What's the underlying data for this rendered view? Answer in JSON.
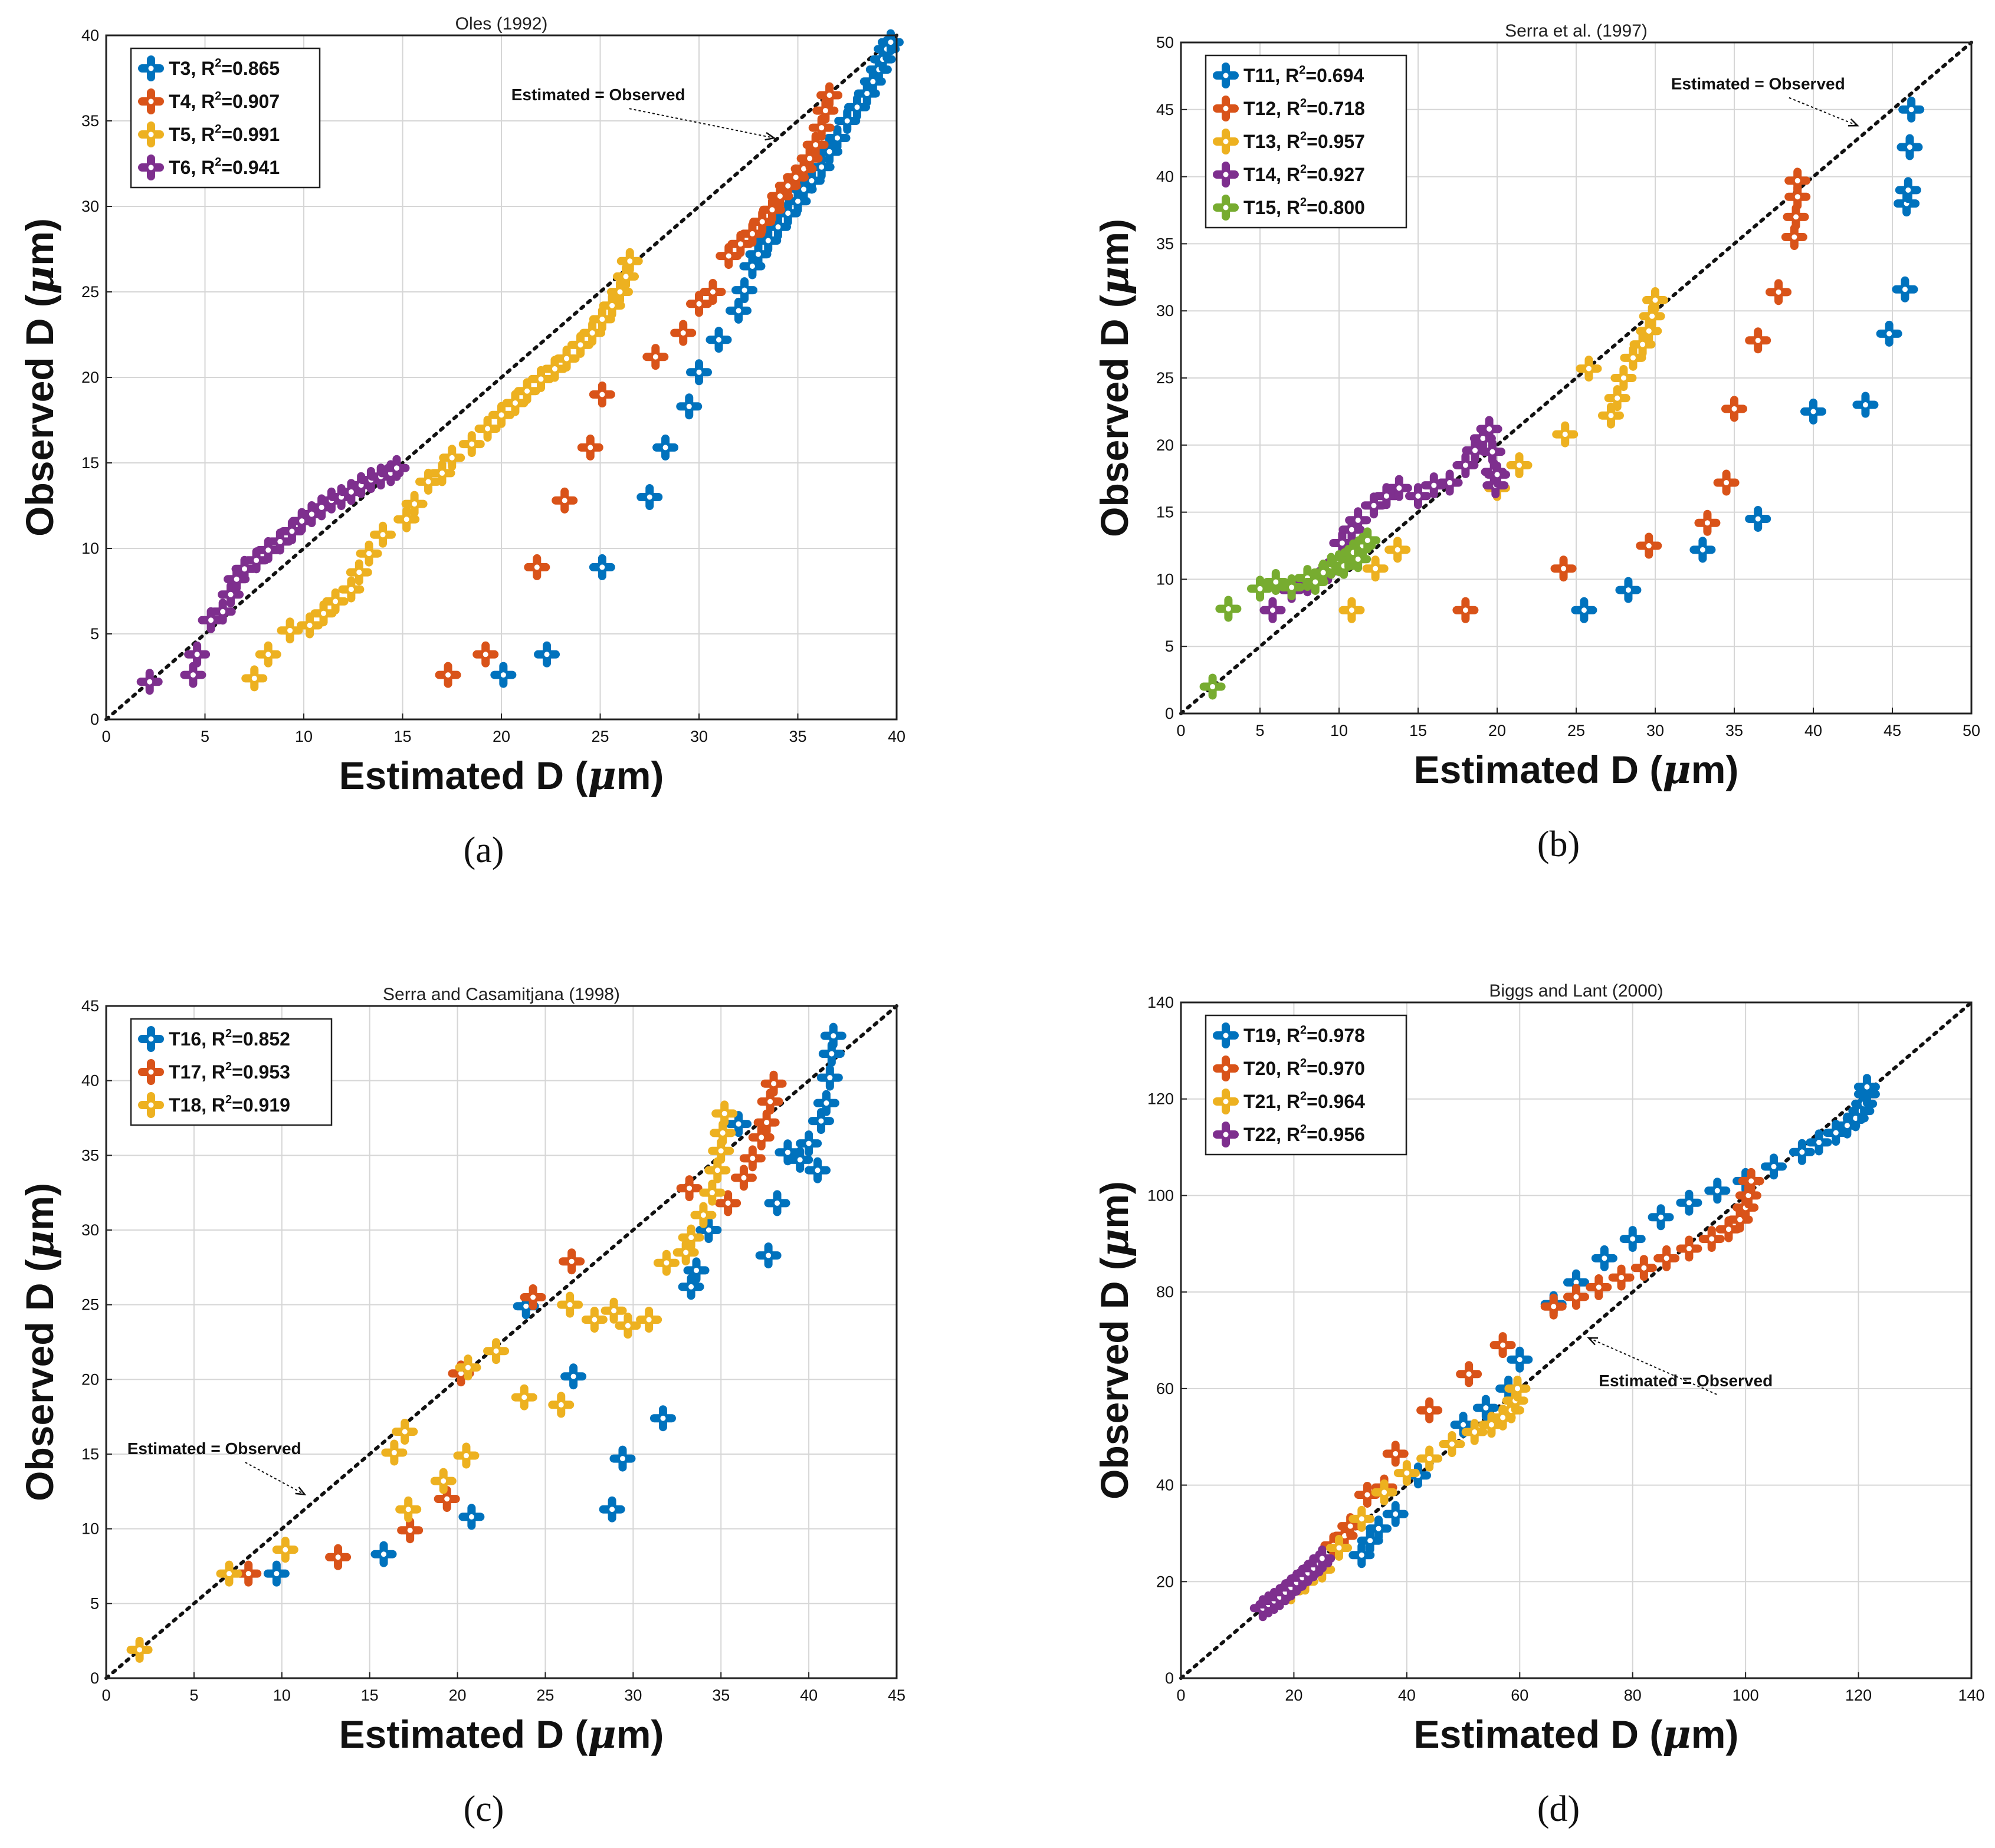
{
  "chart_data": [
    {
      "type": "scatter",
      "panel": "a",
      "caption": "(a)",
      "title": "Oles (1992)",
      "xlabel": "Estimated D (",
      "ylabel": "Observed D (",
      "unit_symbol": "μ",
      "unit_rest": "m)",
      "xlim": [
        0,
        40
      ],
      "ylim": [
        0,
        40
      ],
      "xticks": [
        0,
        5,
        10,
        15,
        20,
        25,
        30,
        35,
        40
      ],
      "yticks": [
        0,
        5,
        10,
        15,
        20,
        25,
        30,
        35,
        40
      ],
      "grid": true,
      "legend_position": "top-left",
      "annotation": {
        "text": "Estimated = Observed",
        "at": [
          20.5,
          36.2
        ],
        "point": [
          33.8,
          34.0
        ]
      },
      "series": [
        {
          "name": "T3",
          "r2": "0.865",
          "color": "#0072BD",
          "x": [
            20.1,
            22.3,
            25.1,
            27.5,
            28.3,
            29.5,
            30.0,
            31.0,
            32.0,
            32.3,
            32.7,
            33.0,
            33.5,
            34.0,
            34.5,
            35.0,
            35.3,
            35.7,
            36.2,
            36.6,
            37.0,
            37.5,
            38.0,
            38.5,
            38.8,
            39.1,
            39.3,
            39.5,
            39.7
          ],
          "y": [
            2.6,
            3.8,
            8.9,
            13.0,
            15.9,
            18.3,
            20.3,
            22.2,
            23.9,
            25.1,
            26.5,
            27.2,
            28.0,
            28.8,
            29.6,
            30.3,
            31.0,
            31.5,
            32.3,
            33.2,
            34.0,
            35.0,
            35.8,
            36.6,
            37.3,
            38.0,
            38.6,
            39.2,
            39.6
          ]
        },
        {
          "name": "T4",
          "r2": "0.907",
          "color": "#D95319",
          "x": [
            17.3,
            19.2,
            21.8,
            23.2,
            24.5,
            25.1,
            27.8,
            29.2,
            30.0,
            30.7,
            31.5,
            32.1,
            32.7,
            33.2,
            33.7,
            34.1,
            34.5,
            34.9,
            35.3,
            35.6,
            35.9,
            36.2,
            36.4,
            36.6
          ],
          "y": [
            2.6,
            3.8,
            8.9,
            12.8,
            15.9,
            19.0,
            21.2,
            22.6,
            24.3,
            25.0,
            27.1,
            27.8,
            28.4,
            29.1,
            29.8,
            30.6,
            31.2,
            31.7,
            32.2,
            32.8,
            33.6,
            34.6,
            35.6,
            36.5
          ]
        },
        {
          "name": "T5",
          "r2": "0.991",
          "color": "#EDB120",
          "x": [
            7.5,
            8.2,
            9.3,
            10.3,
            11.0,
            11.6,
            12.4,
            12.8,
            13.3,
            14.0,
            15.2,
            15.6,
            16.3,
            17.0,
            17.5,
            18.5,
            19.3,
            20.0,
            20.7,
            21.3,
            22.0,
            22.7,
            23.3,
            24.0,
            24.6,
            25.1,
            25.6,
            26.0,
            26.3,
            26.5
          ],
          "y": [
            2.4,
            3.8,
            5.2,
            5.5,
            6.2,
            6.9,
            7.6,
            8.6,
            9.7,
            10.8,
            11.7,
            12.6,
            13.9,
            14.4,
            15.3,
            16.1,
            17.0,
            17.8,
            18.5,
            19.2,
            19.9,
            20.5,
            21.1,
            21.9,
            22.6,
            23.4,
            24.2,
            25.0,
            25.9,
            26.8
          ]
        },
        {
          "name": "T6",
          "r2": "0.941",
          "color": "#7E2F8E",
          "x": [
            2.2,
            4.4,
            4.6,
            5.3,
            5.9,
            6.3,
            6.6,
            7.0,
            7.6,
            8.2,
            8.8,
            9.4,
            9.9,
            10.4,
            10.9,
            11.4,
            11.9,
            12.4,
            12.9,
            13.4,
            13.9,
            14.4,
            14.7
          ],
          "y": [
            2.2,
            2.6,
            3.8,
            5.8,
            6.3,
            7.3,
            8.2,
            8.8,
            9.3,
            9.9,
            10.4,
            11.0,
            11.6,
            12.0,
            12.4,
            12.8,
            13.0,
            13.3,
            13.7,
            14.0,
            14.2,
            14.4,
            14.7
          ]
        }
      ]
    },
    {
      "type": "scatter",
      "panel": "b",
      "caption": "(b)",
      "title": "Serra et al. (1997)",
      "xlabel": "Estimated D (",
      "ylabel": "Observed D (",
      "unit_symbol": "μ",
      "unit_rest": "m)",
      "xlim": [
        0,
        50
      ],
      "ylim": [
        0,
        50
      ],
      "xticks": [
        0,
        5,
        10,
        15,
        20,
        25,
        30,
        35,
        40,
        45,
        50
      ],
      "yticks": [
        0,
        5,
        10,
        15,
        20,
        25,
        30,
        35,
        40,
        45,
        50
      ],
      "grid": true,
      "legend_position": "top-left",
      "annotation": {
        "text": "Estimated = Observed",
        "at": [
          31.0,
          46.5
        ],
        "point": [
          42.8,
          43.8
        ]
      },
      "series": [
        {
          "name": "T11",
          "r2": "0.694",
          "color": "#0072BD",
          "x": [
            25.5,
            28.3,
            33.0,
            36.5,
            40.0,
            43.3,
            44.8,
            45.8,
            45.9,
            46.0,
            46.1,
            46.2
          ],
          "y": [
            7.7,
            9.2,
            12.2,
            14.5,
            22.5,
            23.0,
            28.3,
            31.6,
            38.0,
            39.0,
            42.2,
            45.0
          ]
        },
        {
          "name": "T12",
          "r2": "0.718",
          "color": "#D95319",
          "x": [
            18.0,
            24.2,
            29.6,
            33.3,
            34.5,
            35.0,
            36.5,
            37.8,
            38.8,
            38.9,
            39.0,
            39.0
          ],
          "y": [
            7.7,
            10.8,
            12.5,
            14.2,
            17.2,
            22.7,
            27.8,
            31.4,
            35.5,
            37.0,
            38.5,
            39.7
          ]
        },
        {
          "name": "T13",
          "r2": "0.957",
          "color": "#EDB120",
          "x": [
            10.8,
            12.3,
            13.7,
            20.0,
            21.4,
            24.3,
            25.8,
            27.2,
            27.6,
            28.0,
            28.6,
            29.2,
            29.6,
            29.8,
            30.0
          ],
          "y": [
            7.7,
            10.8,
            12.2,
            16.8,
            18.5,
            20.8,
            25.7,
            22.2,
            23.5,
            25.0,
            26.5,
            27.5,
            28.5,
            29.6,
            30.8
          ]
        },
        {
          "name": "T14",
          "r2": "0.927",
          "color": "#7E2F8E",
          "x": [
            5.8,
            7.0,
            8.0,
            9.3,
            10.2,
            10.8,
            11.2,
            12.2,
            13.0,
            13.8,
            15.0,
            16.0,
            17.0,
            18.0,
            18.6,
            19.1,
            19.5,
            19.7,
            19.8,
            19.9,
            20.0
          ],
          "y": [
            7.7,
            9.2,
            9.7,
            10.6,
            12.7,
            13.7,
            14.4,
            15.5,
            16.2,
            16.8,
            16.2,
            17.0,
            17.2,
            18.5,
            19.6,
            20.5,
            21.2,
            19.5,
            18.0,
            17.0,
            17.8
          ]
        },
        {
          "name": "T15",
          "r2": "0.800",
          "color": "#77AC30",
          "x": [
            2.0,
            3.0,
            5.0,
            6.0,
            7.0,
            8.0,
            8.5,
            9.0,
            9.5,
            10.0,
            10.3,
            10.6,
            10.9,
            11.2,
            11.5,
            11.8
          ],
          "y": [
            2.0,
            7.8,
            9.3,
            9.8,
            9.4,
            10.1,
            9.8,
            10.5,
            11.0,
            11.2,
            11.0,
            11.6,
            12.0,
            11.5,
            12.5,
            12.9
          ]
        }
      ]
    },
    {
      "type": "scatter",
      "panel": "c",
      "caption": "(c)",
      "title": "Serra and Casamitjana (1998)",
      "xlabel": "Estimated D (",
      "ylabel": "Observed D (",
      "unit_symbol": "μ",
      "unit_rest": "m)",
      "xlim": [
        0,
        45
      ],
      "ylim": [
        0,
        45
      ],
      "xticks": [
        0,
        5,
        10,
        15,
        20,
        25,
        30,
        35,
        40,
        45
      ],
      "yticks": [
        0,
        5,
        10,
        15,
        20,
        25,
        30,
        35,
        40,
        45
      ],
      "grid": true,
      "legend_position": "top-left",
      "annotation": {
        "text": "Estimated = Observed",
        "at": [
          1.2,
          15.0
        ],
        "point": [
          11.3,
          12.3
        ]
      },
      "series": [
        {
          "name": "T16",
          "r2": "0.852",
          "color": "#0072BD",
          "x": [
            9.7,
            15.8,
            20.8,
            23.9,
            26.6,
            28.8,
            29.4,
            31.7,
            33.3,
            33.6,
            34.3,
            36.0,
            37.7,
            38.2,
            38.8,
            39.5,
            40.0,
            40.5,
            40.7,
            41.0,
            41.2,
            41.3,
            41.4
          ],
          "y": [
            7.0,
            8.3,
            10.8,
            24.9,
            20.2,
            11.3,
            14.7,
            17.4,
            26.2,
            27.3,
            30.0,
            37.1,
            28.3,
            31.8,
            35.2,
            34.7,
            35.8,
            34.0,
            37.3,
            38.5,
            40.2,
            41.8,
            43.0
          ]
        },
        {
          "name": "T17",
          "r2": "0.953",
          "color": "#D95319",
          "x": [
            8.1,
            13.2,
            17.3,
            19.4,
            20.2,
            24.3,
            26.5,
            33.2,
            35.4,
            36.3,
            36.8,
            37.3,
            37.6,
            37.8,
            38.0
          ],
          "y": [
            7.0,
            8.1,
            9.9,
            12.0,
            20.4,
            25.5,
            27.9,
            32.8,
            31.8,
            33.5,
            34.8,
            36.2,
            37.2,
            38.6,
            39.8
          ]
        },
        {
          "name": "T18",
          "r2": "0.919",
          "color": "#EDB120",
          "x": [
            1.9,
            7.0,
            10.2,
            16.4,
            17.0,
            17.2,
            19.2,
            20.5,
            20.6,
            22.2,
            23.8,
            25.9,
            26.4,
            27.8,
            28.9,
            29.7,
            30.9,
            31.9,
            33.0,
            33.3,
            34.0,
            34.5,
            34.8,
            35.0,
            35.1,
            35.2
          ],
          "y": [
            1.9,
            7.0,
            8.6,
            15.1,
            16.5,
            11.3,
            13.2,
            14.9,
            20.8,
            21.9,
            18.8,
            18.3,
            25.0,
            24.0,
            24.6,
            23.6,
            24.0,
            27.8,
            28.5,
            29.5,
            31.0,
            32.5,
            34.0,
            35.3,
            36.5,
            37.8
          ]
        }
      ]
    },
    {
      "type": "scatter",
      "panel": "d",
      "caption": "(d)",
      "title": "Biggs and Lant (2000)",
      "xlabel": "Estimated D (",
      "ylabel": "Observed D (",
      "unit_symbol": "μ",
      "unit_rest": "m)",
      "xlim": [
        0,
        140
      ],
      "ylim": [
        0,
        140
      ],
      "xticks": [
        0,
        20,
        40,
        60,
        80,
        100,
        120,
        140
      ],
      "yticks": [
        0,
        20,
        40,
        60,
        80,
        100,
        120,
        140
      ],
      "grid": true,
      "legend_position": "top-left",
      "annotation": {
        "text": "Estimated = Observed",
        "at": [
          74.0,
          60.5
        ],
        "point": [
          72.2,
          70.5
        ]
      },
      "series": [
        {
          "name": "T19",
          "r2": "0.978",
          "color": "#0072BD",
          "x": [
            32.0,
            33.5,
            35.0,
            38.0,
            42.0,
            50.0,
            54.0,
            58.0,
            60.0,
            66.0,
            70.0,
            75.0,
            80.0,
            85.0,
            90.0,
            95.0,
            100.0,
            105.0,
            110.0,
            113.0,
            116.0,
            118.0,
            119.5,
            120.5,
            121.0,
            121.5,
            121.5
          ],
          "y": [
            25.5,
            28.5,
            31.0,
            34.0,
            42.0,
            52.5,
            56.0,
            60.0,
            66.0,
            77.5,
            82.0,
            87.0,
            91.0,
            95.5,
            98.5,
            101.0,
            103.0,
            106.0,
            109.0,
            111.0,
            113.0,
            114.5,
            116.0,
            117.5,
            119.0,
            121.0,
            122.5
          ]
        },
        {
          "name": "T20",
          "r2": "0.970",
          "color": "#D95319",
          "x": [
            27.0,
            29.0,
            30.0,
            33.0,
            36.0,
            38.0,
            44.0,
            51.0,
            57.0,
            66.0,
            70.0,
            74.0,
            78.0,
            82.0,
            86.0,
            90.0,
            94.0,
            97.0,
            99.0,
            100.0,
            100.5,
            101.0
          ],
          "y": [
            27.5,
            29.5,
            31.5,
            38.0,
            39.5,
            46.5,
            55.5,
            63.0,
            69.0,
            77.0,
            79.0,
            81.0,
            83.0,
            85.0,
            87.0,
            89.0,
            91.0,
            93.0,
            95.0,
            97.5,
            100.0,
            103.0
          ]
        },
        {
          "name": "T21",
          "r2": "0.964",
          "color": "#EDB120",
          "x": [
            19.5,
            22.0,
            25.0,
            28.0,
            32.0,
            36.0,
            40.0,
            44.0,
            48.0,
            52.0,
            55.0,
            57.0,
            58.5,
            59.2,
            59.6
          ],
          "y": [
            18.0,
            20.0,
            22.5,
            27.0,
            33.0,
            38.5,
            42.5,
            45.5,
            48.5,
            51.0,
            52.5,
            54.0,
            55.5,
            57.5,
            60.0
          ]
        },
        {
          "name": "T22",
          "r2": "0.956",
          "color": "#7E2F8E",
          "x": [
            14.5,
            15.5,
            16.5,
            17.5,
            18.5,
            19.5,
            20.5,
            21.5,
            22.5,
            23.5,
            24.5,
            25.0
          ],
          "y": [
            14.5,
            15.3,
            16.0,
            16.8,
            17.8,
            18.8,
            19.8,
            20.8,
            21.8,
            22.8,
            23.8,
            24.8
          ]
        }
      ]
    }
  ]
}
